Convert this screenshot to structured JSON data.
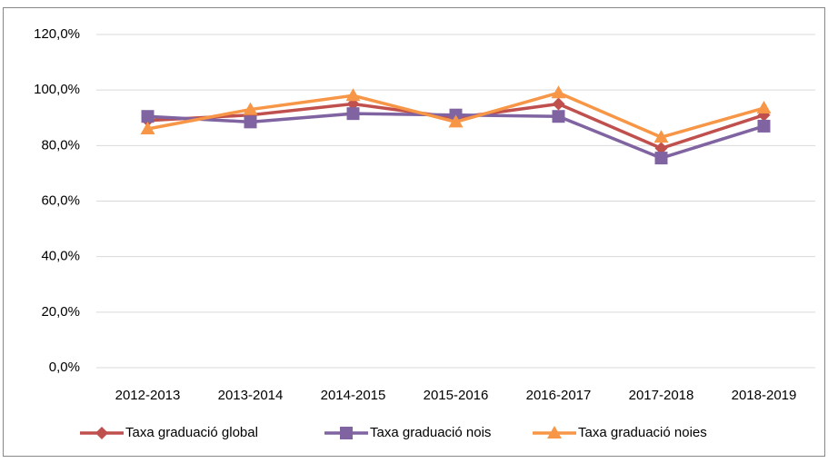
{
  "chart_data": {
    "type": "line",
    "categories": [
      "2012-2013",
      "2013-2014",
      "2014-2015",
      "2015-2016",
      "2016-2017",
      "2017-2018",
      "2018-2019"
    ],
    "series": [
      {
        "name": "Taxa graduació global",
        "color": "#c0504d",
        "marker": "diamond",
        "values": [
          89,
          91,
          95,
          90,
          95,
          79,
          91
        ]
      },
      {
        "name": "Taxa graduació nois",
        "color": "#8064a2",
        "marker": "square",
        "values": [
          90.5,
          88.5,
          91.5,
          91,
          90.5,
          75.5,
          87
        ]
      },
      {
        "name": "Taxa graduació noies",
        "color": "#f79646",
        "marker": "triangle",
        "values": [
          86,
          93,
          98,
          88.5,
          99,
          83,
          93.5
        ]
      }
    ],
    "ylim": [
      0,
      120
    ],
    "yticks": [
      {
        "value": 0,
        "label": "0,0%"
      },
      {
        "value": 20,
        "label": "20,0%"
      },
      {
        "value": 40,
        "label": "40,0%"
      },
      {
        "value": 60,
        "label": "60,0%"
      },
      {
        "value": 80,
        "label": "80,0%"
      },
      {
        "value": 100,
        "label": "100,0%"
      },
      {
        "value": 120,
        "label": "120,0%"
      }
    ],
    "grid": true,
    "legend": "bottom"
  }
}
